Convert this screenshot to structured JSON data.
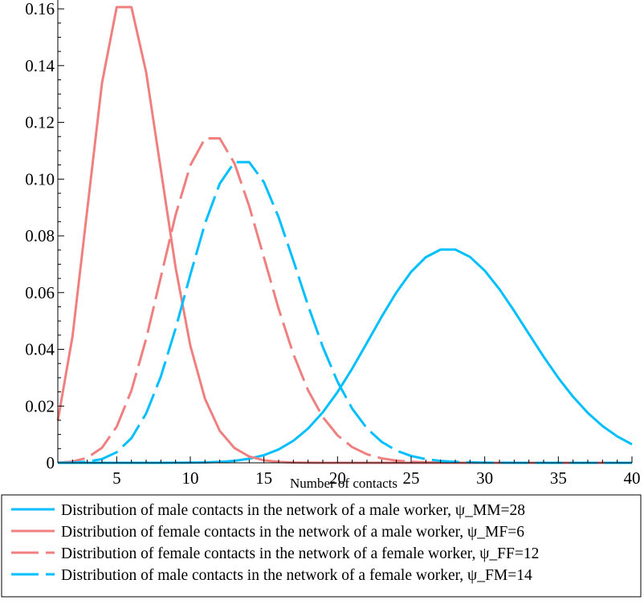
{
  "chart_data": {
    "type": "line",
    "title": "",
    "xlabel": "Number of contacts",
    "ylabel": "",
    "xlim": [
      1,
      40
    ],
    "ylim": [
      0,
      0.162
    ],
    "grid": false,
    "legend_position": "bottom",
    "x_ticks": [
      5,
      10,
      15,
      20,
      25,
      30,
      35,
      40
    ],
    "x_tick_labels": [
      "5",
      "10",
      "15",
      "20",
      "25",
      "30",
      "35",
      "40"
    ],
    "y_ticks": [
      0,
      0.02,
      0.04,
      0.06,
      0.08,
      0.1,
      0.12,
      0.14,
      0.16
    ],
    "y_tick_labels": [
      "0",
      "0.02",
      "0.04",
      "0.06",
      "0.08",
      "0.10",
      "0.12",
      "0.14",
      "0.16"
    ],
    "series": [
      {
        "name": "Distribution of male contacts in the network of a male worker, ψ_MM=28",
        "lambda": 28,
        "color": "#00bfff",
        "dash": "solid"
      },
      {
        "name": "Distribution of female contacts in the network of a male worker, ψ_MF=6",
        "lambda": 6,
        "color": "#f08080",
        "dash": "solid"
      },
      {
        "name": "Distribution of female contacts in the network of a female worker, ψ_FF=12",
        "lambda": 12,
        "color": "#f08080",
        "dash": "dashed"
      },
      {
        "name": "Distribution of male contacts in the network of a female worker, ψ_FM=14",
        "lambda": 14,
        "color": "#00bfff",
        "dash": "dashed"
      }
    ]
  }
}
